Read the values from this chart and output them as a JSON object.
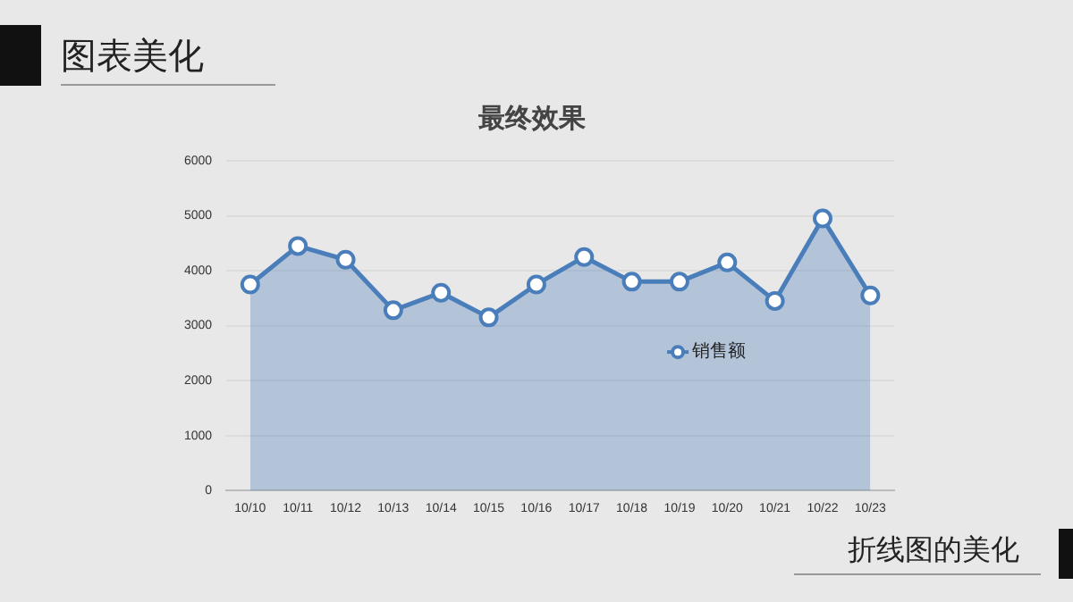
{
  "chart_data": {
    "type": "area",
    "title": "最终效果",
    "categories": [
      "10/10",
      "10/11",
      "10/12",
      "10/13",
      "10/14",
      "10/15",
      "10/16",
      "10/17",
      "10/18",
      "10/19",
      "10/20",
      "10/21",
      "10/22",
      "10/23"
    ],
    "series": [
      {
        "name": "销售额",
        "color": "#4a7ebb",
        "values": [
          3750,
          4450,
          4200,
          3280,
          3600,
          3150,
          3750,
          4250,
          3800,
          3800,
          4150,
          3450,
          4950,
          3550
        ]
      }
    ],
    "ylim": [
      0,
      6000
    ],
    "yticks": [
      0,
      1000,
      2000,
      3000,
      4000,
      5000,
      6000
    ],
    "grid": "y",
    "legend": "right",
    "marker": "circle",
    "annotations": [
      "图表美化",
      "折线图的美化"
    ]
  }
}
